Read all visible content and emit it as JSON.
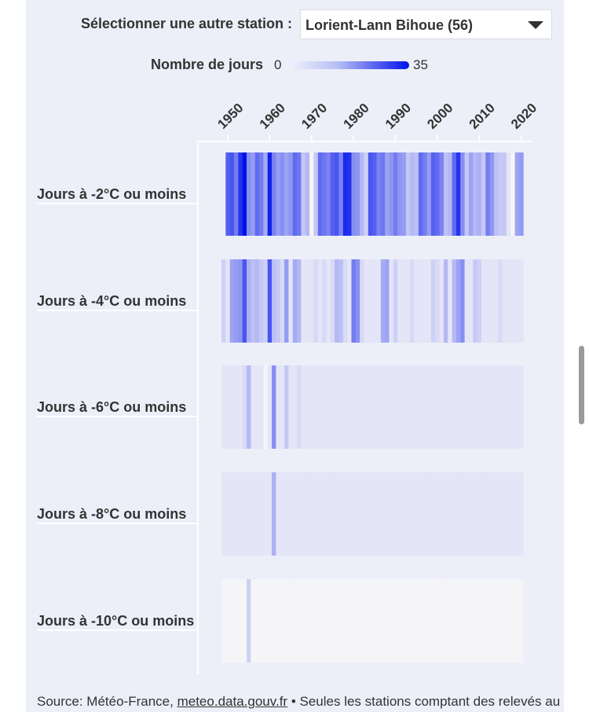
{
  "selector": {
    "label": "Sélectionner une autre station :",
    "value": "Lorient-Lann Bihoue (56)"
  },
  "legend": {
    "title": "Nombre de jours",
    "min": "0",
    "max": "35",
    "color_low": "#eef0fb",
    "color_high": "#0012ea"
  },
  "source": {
    "prefix": "Source: Météo-France,",
    "link": "meteo.data.gouv.fr",
    "suffix": "• Seules les stations comptant des relevés au"
  },
  "chart_data": {
    "type": "heatmap",
    "x_start_year": 1949,
    "x_end_year": 2022,
    "x_ticks": [
      "1950",
      "1960",
      "1970",
      "1980",
      "1990",
      "2000",
      "2010",
      "2020"
    ],
    "value_range": [
      0,
      35
    ],
    "rows": [
      {
        "label": "Jours à -2°C ou moins",
        "values": [
          null,
          20,
          22,
          15,
          28,
          35,
          12,
          10,
          18,
          15,
          8,
          32,
          14,
          10,
          12,
          9,
          11,
          18,
          16,
          4,
          6,
          0,
          4,
          18,
          16,
          14,
          20,
          22,
          14,
          30,
          29,
          12,
          11,
          6,
          3,
          22,
          20,
          14,
          16,
          9,
          11,
          15,
          11,
          10,
          4,
          6,
          5,
          18,
          15,
          10,
          20,
          18,
          14,
          5,
          6,
          18,
          28,
          12,
          4,
          9,
          6,
          7,
          4,
          15,
          11,
          5,
          4,
          4,
          1,
          0,
          9,
          10
        ]
      },
      {
        "label": "Jours à -4°C ou moins",
        "values": [
          3,
          1,
          9,
          10,
          11,
          22,
          7,
          5,
          6,
          4,
          3,
          22,
          5,
          4,
          2,
          10,
          1,
          8,
          6,
          1,
          1,
          1,
          2,
          1,
          2,
          1,
          2,
          6,
          5,
          2,
          1,
          15,
          12,
          2,
          1,
          1,
          1,
          1,
          8,
          9,
          1,
          3,
          1,
          1,
          1,
          2,
          1,
          1,
          1,
          1,
          3,
          2,
          1,
          6,
          1,
          6,
          9,
          12,
          1,
          1,
          4,
          3,
          1,
          1,
          1,
          1,
          2,
          1,
          1,
          1,
          1,
          1
        ]
      },
      {
        "label": "Jours à -6°C ou moins",
        "values": [
          1,
          1,
          1,
          1,
          1,
          2,
          6,
          1,
          1,
          1,
          0,
          1,
          12,
          1,
          1,
          4,
          1,
          1,
          2,
          1,
          1,
          1,
          1,
          1,
          1,
          1,
          1,
          1,
          1,
          1,
          1,
          1,
          1,
          1,
          1,
          1,
          1,
          1,
          1,
          1,
          1,
          1,
          1,
          1,
          1,
          1,
          1,
          1,
          1,
          1,
          1,
          1,
          1,
          1,
          1,
          1,
          1,
          1,
          1,
          1,
          1,
          1,
          1,
          1,
          1,
          1,
          1,
          1,
          1,
          1,
          1,
          1
        ]
      },
      {
        "label": "Jours à -8°C ou moins",
        "values": [
          1,
          1,
          1,
          1,
          1,
          1,
          1,
          1,
          1,
          1,
          1,
          1,
          7,
          1,
          1,
          1,
          1,
          1,
          1,
          1,
          1,
          1,
          1,
          1,
          1,
          1,
          1,
          1,
          1,
          1,
          1,
          1,
          1,
          1,
          1,
          1,
          1,
          1,
          1,
          1,
          1,
          1,
          1,
          1,
          1,
          1,
          1,
          1,
          1,
          1,
          1,
          1,
          1,
          1,
          1,
          1,
          1,
          1,
          1,
          1,
          1,
          1,
          1,
          1,
          1,
          1,
          1,
          1,
          1,
          1,
          1,
          1
        ]
      },
      {
        "label": "Jours à -10°C ou moins",
        "values": [
          0,
          0,
          0,
          0,
          0,
          0,
          3,
          0,
          0,
          0,
          0,
          0,
          0,
          0,
          0,
          0,
          0,
          0,
          0,
          0,
          0,
          0,
          0,
          0,
          0,
          0,
          0,
          0,
          0,
          0,
          0,
          0,
          0,
          0,
          0,
          0,
          0,
          0,
          0,
          0,
          0,
          0,
          0,
          0,
          0,
          0,
          0,
          0,
          0,
          0,
          0,
          0,
          0,
          0,
          0,
          0,
          0,
          0,
          0,
          0,
          0,
          0,
          0,
          0,
          0,
          0,
          0,
          0,
          0,
          0,
          0,
          0
        ]
      }
    ]
  }
}
